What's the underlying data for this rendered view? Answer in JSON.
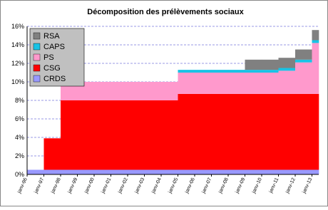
{
  "chart_data": {
    "type": "stacked-step-area",
    "title": "Décomposition des prélèvements sociaux",
    "categories": [
      "janv-96",
      "janv-97",
      "janv-98",
      "janv-99",
      "janv-00",
      "janv-01",
      "janv-02",
      "janv-03",
      "janv-04",
      "janv-05",
      "janv-06",
      "janv-07",
      "janv-08",
      "janv-09",
      "janv-10",
      "janv-11",
      "janv-12",
      "janv-13"
    ],
    "series": [
      {
        "name": "CRDS",
        "color": "#9999ff",
        "values": [
          0.5,
          0.5,
          0.5,
          0.5,
          0.5,
          0.5,
          0.5,
          0.5,
          0.5,
          0.5,
          0.5,
          0.5,
          0.5,
          0.5,
          0.5,
          0.5,
          0.5,
          0.5
        ]
      },
      {
        "name": "CSG",
        "color": "#ff0000",
        "values": [
          0,
          3.4,
          7.5,
          7.5,
          7.5,
          7.5,
          7.5,
          7.5,
          7.5,
          8.2,
          8.2,
          8.2,
          8.2,
          8.2,
          8.2,
          8.2,
          8.2,
          8.2
        ]
      },
      {
        "name": "PS",
        "color": "#ff99cc",
        "values": [
          0,
          0,
          2,
          2,
          2,
          2,
          2,
          2,
          2,
          2.3,
          2.3,
          2.3,
          2.3,
          2.3,
          2.3,
          2.5,
          3.4,
          5.5
        ]
      },
      {
        "name": "CAPS",
        "color": "#19c3e6",
        "values": [
          0,
          0,
          0,
          0,
          0,
          0,
          0,
          0,
          0,
          0.3,
          0.3,
          0.3,
          0.3,
          0.3,
          0.3,
          0.3,
          0.3,
          0.3
        ]
      },
      {
        "name": "RSA",
        "color": "#808080",
        "values": [
          0,
          0,
          0,
          0,
          0,
          0,
          0,
          0,
          0,
          0,
          0,
          0,
          0,
          1.1,
          1.1,
          1.1,
          1.1,
          1.1
        ]
      }
    ],
    "ylim": [
      0,
      16
    ],
    "yticks": [
      {
        "value": 0,
        "label": "0%"
      },
      {
        "value": 2,
        "label": "2%"
      },
      {
        "value": 4,
        "label": "4%"
      },
      {
        "value": 6,
        "label": "6%"
      },
      {
        "value": 8,
        "label": "8%"
      },
      {
        "value": 10,
        "label": "10%"
      },
      {
        "value": 12,
        "label": "12%"
      },
      {
        "value": 14,
        "label": "14%"
      },
      {
        "value": 16,
        "label": "16%"
      }
    ],
    "grid": true,
    "legend": "upper-left"
  }
}
